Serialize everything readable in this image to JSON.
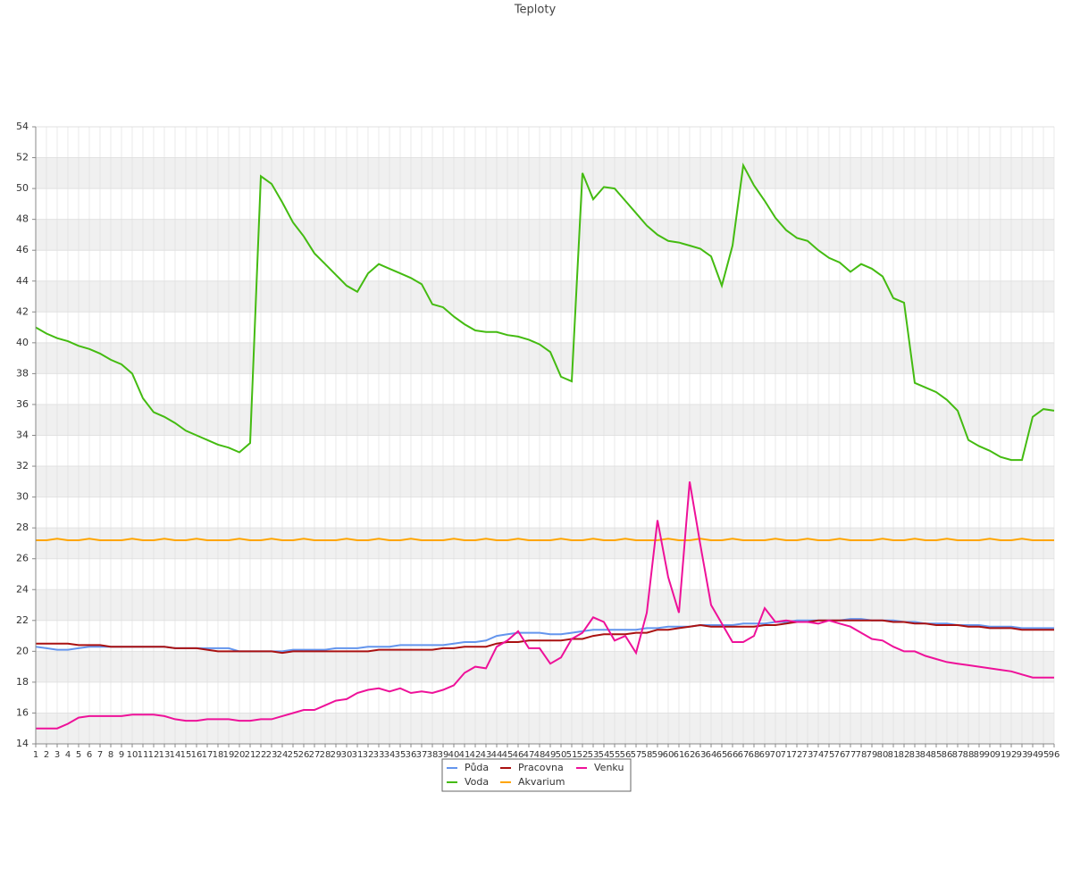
{
  "chart_data": {
    "type": "line",
    "title": "Teploty",
    "categories": [
      1,
      2,
      3,
      4,
      5,
      6,
      7,
      8,
      9,
      10,
      11,
      12,
      13,
      14,
      15,
      16,
      17,
      18,
      19,
      20,
      21,
      22,
      23,
      24,
      25,
      26,
      27,
      28,
      29,
      30,
      31,
      32,
      33,
      34,
      35,
      36,
      37,
      38,
      39,
      40,
      41,
      42,
      43,
      44,
      45,
      46,
      47,
      48,
      49,
      50,
      51,
      52,
      53,
      54,
      55,
      56,
      57,
      58,
      59,
      60,
      61,
      62,
      63,
      64,
      65,
      66,
      67,
      68,
      69,
      70,
      71,
      72,
      73,
      74,
      75,
      76,
      77,
      78,
      79,
      80,
      81,
      82,
      83,
      84,
      85,
      86,
      87,
      88,
      89,
      90,
      91,
      92,
      93,
      94,
      95,
      96
    ],
    "series": [
      {
        "name": "Půda",
        "color": "#6495ed",
        "values": [
          20.3,
          20.2,
          20.1,
          20.1,
          20.2,
          20.3,
          20.3,
          20.3,
          20.3,
          20.3,
          20.3,
          20.3,
          20.3,
          20.2,
          20.2,
          20.2,
          20.2,
          20.2,
          20.2,
          20.0,
          20.0,
          20.0,
          20.0,
          20.0,
          20.1,
          20.1,
          20.1,
          20.1,
          20.2,
          20.2,
          20.2,
          20.3,
          20.3,
          20.3,
          20.4,
          20.4,
          20.4,
          20.4,
          20.4,
          20.5,
          20.6,
          20.6,
          20.7,
          21.0,
          21.1,
          21.2,
          21.2,
          21.2,
          21.1,
          21.1,
          21.2,
          21.3,
          21.4,
          21.4,
          21.4,
          21.4,
          21.4,
          21.5,
          21.5,
          21.6,
          21.6,
          21.6,
          21.7,
          21.7,
          21.7,
          21.7,
          21.8,
          21.8,
          21.8,
          21.9,
          21.9,
          22.0,
          22.0,
          22.0,
          22.0,
          22.0,
          22.1,
          22.1,
          22.0,
          22.0,
          22.0,
          21.9,
          21.9,
          21.8,
          21.8,
          21.8,
          21.7,
          21.7,
          21.7,
          21.6,
          21.6,
          21.6,
          21.5,
          21.5,
          21.5,
          21.5
        ]
      },
      {
        "name": "Voda",
        "color": "#44bb11",
        "values": [
          41.0,
          40.6,
          40.3,
          40.1,
          39.8,
          39.6,
          39.3,
          38.9,
          38.6,
          38.0,
          36.4,
          35.5,
          35.2,
          34.8,
          34.3,
          34.0,
          33.7,
          33.4,
          33.2,
          32.9,
          33.5,
          50.8,
          50.3,
          49.1,
          47.8,
          46.9,
          45.8,
          45.1,
          44.4,
          43.7,
          43.3,
          44.5,
          45.1,
          44.8,
          44.5,
          44.2,
          43.8,
          42.5,
          42.3,
          41.7,
          41.2,
          40.8,
          40.7,
          40.7,
          40.5,
          40.4,
          40.2,
          39.9,
          39.4,
          37.8,
          37.5,
          51.0,
          49.3,
          50.1,
          50.0,
          49.2,
          48.4,
          47.6,
          47.0,
          46.6,
          46.5,
          46.3,
          46.1,
          45.6,
          43.7,
          46.3,
          51.5,
          50.2,
          49.2,
          48.1,
          47.3,
          46.8,
          46.6,
          46.0,
          45.5,
          45.2,
          44.6,
          45.1,
          44.8,
          44.3,
          42.9,
          42.6,
          37.4,
          37.1,
          36.8,
          36.3,
          35.6,
          33.7,
          33.3,
          33.0,
          32.6,
          32.4,
          32.4,
          35.2,
          35.7,
          35.6
        ]
      },
      {
        "name": "Pracovna",
        "color": "#aa1111",
        "values": [
          20.5,
          20.5,
          20.5,
          20.5,
          20.4,
          20.4,
          20.4,
          20.3,
          20.3,
          20.3,
          20.3,
          20.3,
          20.3,
          20.2,
          20.2,
          20.2,
          20.1,
          20.0,
          20.0,
          20.0,
          20.0,
          20.0,
          20.0,
          19.9,
          20.0,
          20.0,
          20.0,
          20.0,
          20.0,
          20.0,
          20.0,
          20.0,
          20.1,
          20.1,
          20.1,
          20.1,
          20.1,
          20.1,
          20.2,
          20.2,
          20.3,
          20.3,
          20.3,
          20.5,
          20.6,
          20.6,
          20.7,
          20.7,
          20.7,
          20.7,
          20.8,
          20.8,
          21.0,
          21.1,
          21.1,
          21.1,
          21.2,
          21.2,
          21.4,
          21.4,
          21.5,
          21.6,
          21.7,
          21.6,
          21.6,
          21.6,
          21.6,
          21.6,
          21.7,
          21.7,
          21.8,
          21.9,
          21.9,
          22.0,
          22.0,
          22.0,
          22.0,
          22.0,
          22.0,
          22.0,
          21.9,
          21.9,
          21.8,
          21.8,
          21.7,
          21.7,
          21.7,
          21.6,
          21.6,
          21.5,
          21.5,
          21.5,
          21.4,
          21.4,
          21.4,
          21.4
        ]
      },
      {
        "name": "Akvarium",
        "color": "#ffa500",
        "values": [
          27.2,
          27.2,
          27.3,
          27.2,
          27.2,
          27.3,
          27.2,
          27.2,
          27.2,
          27.3,
          27.2,
          27.2,
          27.3,
          27.2,
          27.2,
          27.3,
          27.2,
          27.2,
          27.2,
          27.3,
          27.2,
          27.2,
          27.3,
          27.2,
          27.2,
          27.3,
          27.2,
          27.2,
          27.2,
          27.3,
          27.2,
          27.2,
          27.3,
          27.2,
          27.2,
          27.3,
          27.2,
          27.2,
          27.2,
          27.3,
          27.2,
          27.2,
          27.3,
          27.2,
          27.2,
          27.3,
          27.2,
          27.2,
          27.2,
          27.3,
          27.2,
          27.2,
          27.3,
          27.2,
          27.2,
          27.3,
          27.2,
          27.2,
          27.2,
          27.3,
          27.2,
          27.2,
          27.3,
          27.2,
          27.2,
          27.3,
          27.2,
          27.2,
          27.2,
          27.3,
          27.2,
          27.2,
          27.3,
          27.2,
          27.2,
          27.3,
          27.2,
          27.2,
          27.2,
          27.3,
          27.2,
          27.2,
          27.3,
          27.2,
          27.2,
          27.3,
          27.2,
          27.2,
          27.2,
          27.3,
          27.2,
          27.2,
          27.3,
          27.2,
          27.2,
          27.2
        ]
      },
      {
        "name": "Venku",
        "color": "#ee1199",
        "values": [
          15.0,
          15.0,
          15.0,
          15.3,
          15.7,
          15.8,
          15.8,
          15.8,
          15.8,
          15.9,
          15.9,
          15.9,
          15.8,
          15.6,
          15.5,
          15.5,
          15.6,
          15.6,
          15.6,
          15.5,
          15.5,
          15.6,
          15.6,
          15.8,
          16.0,
          16.2,
          16.2,
          16.5,
          16.8,
          16.9,
          17.3,
          17.5,
          17.6,
          17.4,
          17.6,
          17.3,
          17.4,
          17.3,
          17.5,
          17.8,
          18.6,
          19.0,
          18.9,
          20.3,
          20.7,
          21.3,
          20.2,
          20.2,
          19.2,
          19.6,
          20.8,
          21.2,
          22.2,
          21.9,
          20.7,
          21.0,
          19.9,
          22.5,
          28.5,
          24.8,
          22.5,
          31.0,
          26.9,
          23.0,
          21.8,
          20.6,
          20.6,
          21.0,
          22.8,
          21.9,
          22.0,
          21.9,
          21.9,
          21.8,
          22.0,
          21.8,
          21.6,
          21.2,
          20.8,
          20.7,
          20.3,
          20.0,
          20.0,
          19.7,
          19.5,
          19.3,
          19.2,
          19.1,
          19.0,
          18.9,
          18.8,
          18.7,
          18.5,
          18.3,
          18.3,
          18.3
        ]
      }
    ],
    "ylim": [
      14,
      54
    ],
    "yticks": [
      14,
      16,
      18,
      20,
      22,
      24,
      26,
      28,
      30,
      32,
      34,
      36,
      38,
      40,
      42,
      44,
      46,
      48,
      50,
      52,
      54
    ],
    "grid": true
  }
}
